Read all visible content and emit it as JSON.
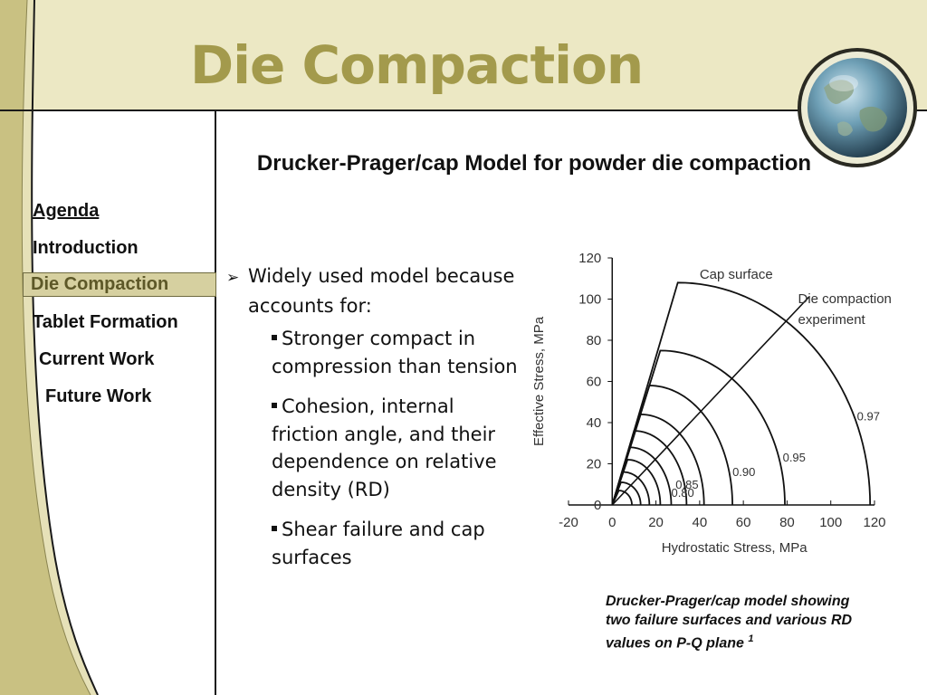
{
  "slide": {
    "title": "Die Compaction",
    "subtitle": "Drucker-Prager/cap Model for powder die compaction"
  },
  "colors": {
    "title": "#a39a4c",
    "band": "#ece8c4",
    "active_nav_bg": "#d6d0a0",
    "active_nav_text": "#5d5828"
  },
  "nav": {
    "agenda": "Agenda",
    "introduction": "Introduction",
    "die_compaction": "Die Compaction",
    "tablet_formation": "Tablet Formation",
    "current_work": "Current Work",
    "future_work": "Future Work"
  },
  "bullets": {
    "main": "Widely used model because accounts for:",
    "sub": [
      "Stronger compact in compression than tension",
      "Cohesion, internal friction angle, and their dependence on relative density (RD)",
      "Shear failure and cap surfaces"
    ]
  },
  "caption": {
    "text": "Drucker-Prager/cap model showing two failure surfaces and various RD values on P-Q plane",
    "superscript": "1"
  },
  "chart_data": {
    "type": "line",
    "xlabel": "Hydrostatic Stress, MPa",
    "ylabel": "Effective Stress, MPa",
    "xlim": [
      -20,
      120
    ],
    "ylim": [
      0,
      120
    ],
    "xticks": [
      -20,
      0,
      20,
      40,
      60,
      80,
      100,
      120
    ],
    "yticks": [
      0,
      20,
      40,
      60,
      80,
      100,
      120
    ],
    "grid": false,
    "annotations": [
      "Cap surface",
      "Die compaction experiment"
    ],
    "rd_labels": [
      "0.80",
      "0.85",
      "0.90",
      "0.95",
      "0.97"
    ],
    "series": [
      {
        "name": "0.97",
        "shear_peak": [
          30,
          108
        ],
        "cap_end_x": 118
      },
      {
        "name": "0.95",
        "shear_peak": [
          22,
          75
        ],
        "cap_end_x": 79
      },
      {
        "name": "0.90",
        "shear_peak": [
          17,
          58
        ],
        "cap_end_x": 55
      },
      {
        "name": "0.85",
        "shear_peak": [
          13,
          44
        ],
        "cap_end_x": 42
      },
      {
        "name": "0.80",
        "shear_peak": [
          10,
          36
        ],
        "cap_end_x": 34
      },
      {
        "shear_peak": [
          8,
          28
        ],
        "cap_end_x": 27
      },
      {
        "shear_peak": [
          7,
          22
        ],
        "cap_end_x": 22
      },
      {
        "shear_peak": [
          5,
          16
        ],
        "cap_end_x": 17
      },
      {
        "shear_peak": [
          4,
          11
        ],
        "cap_end_x": 13
      },
      {
        "shear_peak": [
          3,
          7
        ],
        "cap_end_x": 9
      }
    ],
    "die_compaction_line": {
      "from": [
        0,
        0
      ],
      "to": [
        90,
        101
      ]
    }
  }
}
